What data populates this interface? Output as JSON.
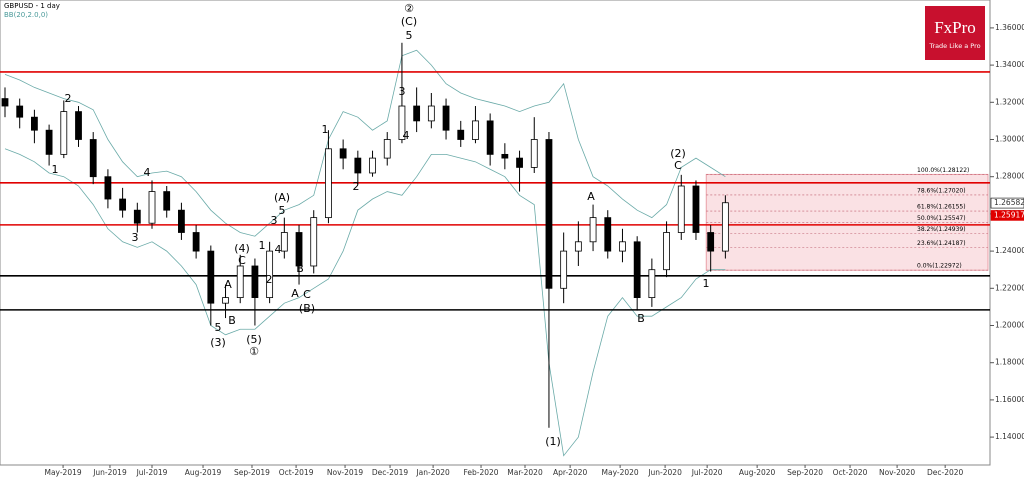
{
  "header": {
    "symbol": "GBPUSD - 1 day",
    "indicator": "BB(20,2.0,0)"
  },
  "logo": {
    "name": "FxPro",
    "tagline": "Trade Like a Pro"
  },
  "chart_data": {
    "type": "candlestick",
    "open": [
      1.322,
      1.318,
      1.312,
      1.305,
      1.292,
      1.315,
      1.3,
      1.28,
      1.268,
      1.262,
      1.255,
      1.272,
      1.262,
      1.25,
      1.24,
      1.212,
      1.215,
      1.232,
      1.215,
      1.24,
      1.25,
      1.232,
      1.258,
      1.295,
      1.29,
      1.282,
      1.29,
      1.3,
      1.318,
      1.31,
      1.318,
      1.305,
      1.3,
      1.31,
      1.292,
      1.29,
      1.285,
      1.3,
      1.22,
      1.24,
      1.245,
      1.258,
      1.24,
      1.245,
      1.215,
      1.23,
      1.25,
      1.275,
      1.25,
      1.24
    ],
    "high": [
      1.328,
      1.322,
      1.316,
      1.308,
      1.321,
      1.318,
      1.304,
      1.284,
      1.274,
      1.266,
      1.278,
      1.275,
      1.266,
      1.254,
      1.243,
      1.222,
      1.238,
      1.236,
      1.245,
      1.258,
      1.254,
      1.262,
      1.305,
      1.3,
      1.294,
      1.294,
      1.304,
      1.352,
      1.328,
      1.325,
      1.322,
      1.31,
      1.318,
      1.314,
      1.298,
      1.294,
      1.312,
      1.304,
      1.25,
      1.256,
      1.265,
      1.262,
      1.252,
      1.248,
      1.236,
      1.256,
      1.281,
      1.278,
      1.254,
      1.27
    ],
    "low": [
      1.312,
      1.306,
      1.298,
      1.286,
      1.29,
      1.296,
      1.276,
      1.263,
      1.258,
      1.25,
      1.252,
      1.258,
      1.246,
      1.236,
      1.2,
      1.204,
      1.212,
      1.2,
      1.212,
      1.236,
      1.222,
      1.228,
      1.255,
      1.284,
      1.276,
      1.28,
      1.286,
      1.298,
      1.304,
      1.306,
      1.3,
      1.296,
      1.298,
      1.286,
      1.284,
      1.272,
      1.282,
      1.145,
      1.212,
      1.232,
      1.24,
      1.236,
      1.234,
      1.208,
      1.21,
      1.226,
      1.246,
      1.246,
      1.229,
      1.236
    ],
    "close": [
      1.318,
      1.312,
      1.305,
      1.292,
      1.315,
      1.3,
      1.28,
      1.268,
      1.262,
      1.255,
      1.272,
      1.262,
      1.25,
      1.24,
      1.212,
      1.215,
      1.232,
      1.215,
      1.24,
      1.25,
      1.232,
      1.258,
      1.295,
      1.29,
      1.282,
      1.29,
      1.3,
      1.318,
      1.31,
      1.318,
      1.305,
      1.3,
      1.31,
      1.292,
      1.29,
      1.285,
      1.3,
      1.22,
      1.24,
      1.245,
      1.258,
      1.24,
      1.245,
      1.215,
      1.23,
      1.25,
      1.275,
      1.25,
      1.24,
      1.266
    ],
    "bollinger": {
      "upper": [
        1.335,
        1.332,
        1.328,
        1.325,
        1.322,
        1.32,
        1.316,
        1.3,
        1.288,
        1.28,
        1.282,
        1.283,
        1.28,
        1.272,
        1.262,
        1.255,
        1.25,
        1.248,
        1.255,
        1.262,
        1.265,
        1.27,
        1.3,
        1.315,
        1.312,
        1.305,
        1.31,
        1.345,
        1.348,
        1.34,
        1.33,
        1.325,
        1.322,
        1.32,
        1.318,
        1.315,
        1.318,
        1.32,
        1.33,
        1.3,
        1.28,
        1.275,
        1.268,
        1.262,
        1.258,
        1.265,
        1.285,
        1.29,
        1.285,
        1.28
      ],
      "lower": [
        1.295,
        1.292,
        1.288,
        1.282,
        1.28,
        1.275,
        1.265,
        1.252,
        1.245,
        1.242,
        1.245,
        1.24,
        1.232,
        1.222,
        1.2,
        1.195,
        1.198,
        1.198,
        1.205,
        1.212,
        1.215,
        1.22,
        1.225,
        1.24,
        1.262,
        1.268,
        1.272,
        1.27,
        1.28,
        1.292,
        1.292,
        1.29,
        1.288,
        1.284,
        1.28,
        1.27,
        1.265,
        1.18,
        1.13,
        1.14,
        1.175,
        1.205,
        1.215,
        1.205,
        1.205,
        1.21,
        1.215,
        1.225,
        1.23,
        1.23
      ]
    },
    "xlim": [
      -0.34,
      67
    ],
    "ylim": [
      1.125,
      1.375
    ],
    "yticks": [
      {
        "value": 1.36,
        "label": "1.36000"
      },
      {
        "value": 1.34,
        "label": "1.34000"
      },
      {
        "value": 1.32,
        "label": "1.32000"
      },
      {
        "value": 1.3,
        "label": "1.30000"
      },
      {
        "value": 1.28,
        "label": "1.28000"
      },
      {
        "value": 1.26,
        "label": "1.26000"
      },
      {
        "value": 1.24,
        "label": "1.24000"
      },
      {
        "value": 1.22,
        "label": "1.22000"
      },
      {
        "value": 1.2,
        "label": "1.20000"
      },
      {
        "value": 1.18,
        "label": "1.18000"
      },
      {
        "value": 1.16,
        "label": "1.16000"
      },
      {
        "value": 1.14,
        "label": "1.14000"
      }
    ],
    "xticks": [
      {
        "value": 3.95,
        "label": "May-2019"
      },
      {
        "value": 7.14,
        "label": "Jun-2019"
      },
      {
        "value": 10.0,
        "label": "Jul-2019"
      },
      {
        "value": 13.47,
        "label": "Aug-2019"
      },
      {
        "value": 16.8,
        "label": "Sep-2019"
      },
      {
        "value": 19.8,
        "label": "Oct-2019"
      },
      {
        "value": 23.13,
        "label": "Nov-2019"
      },
      {
        "value": 26.19,
        "label": "Dec-2019"
      },
      {
        "value": 29.12,
        "label": "Jan-2020"
      },
      {
        "value": 32.38,
        "label": "Feb-2020"
      },
      {
        "value": 35.37,
        "label": "Mar-2020"
      },
      {
        "value": 38.44,
        "label": "Apr-2020"
      },
      {
        "value": 41.84,
        "label": "May-2020"
      },
      {
        "value": 44.9,
        "label": "Jun-2020"
      },
      {
        "value": 47.76,
        "label": "Jul-2020"
      },
      {
        "value": 51.16,
        "label": "Aug-2020"
      },
      {
        "value": 54.42,
        "label": "Sep-2020"
      },
      {
        "value": 57.48,
        "label": "Oct-2020"
      },
      {
        "value": 60.68,
        "label": "Nov-2020"
      },
      {
        "value": 63.95,
        "label": "Dec-2020"
      }
    ],
    "levels": [
      {
        "value": 1.3363,
        "color": "#e00000"
      },
      {
        "value": 1.2767,
        "color": "#e00000"
      },
      {
        "value": 1.2541,
        "color": "#e00000"
      },
      {
        "value": 1.2267,
        "color": "#000000"
      },
      {
        "value": 1.2084,
        "color": "#000000"
      }
    ],
    "fib": [
      {
        "value": 1.28122,
        "label": "100.0%(1.28122)"
      },
      {
        "value": 1.2702,
        "label": "78.6%(1.27020)"
      },
      {
        "value": 1.26155,
        "label": "61.8%(1.26155)"
      },
      {
        "value": 1.25547,
        "label": "50.0%(1.25547)"
      },
      {
        "value": 1.24939,
        "label": "38.2%(1.24939)"
      },
      {
        "value": 1.24187,
        "label": "23.6%(1.24187)"
      },
      {
        "value": 1.22972,
        "label": "0.0%(1.22972)"
      }
    ],
    "price_tags": [
      {
        "value": 1.26582,
        "label": "1.26582"
      },
      {
        "value": 1.25917,
        "label": "1.25917"
      }
    ],
    "annotations": [
      "2",
      "1",
      "4",
      "3",
      "(4)",
      "C",
      "A",
      "B",
      "5",
      "(3)",
      "(5)",
      "①",
      "(A)",
      "5",
      "3",
      "1",
      "4",
      "2",
      "B",
      "A",
      "C",
      "(B)",
      "1",
      "2",
      "3",
      "4",
      "5",
      "(C)",
      "②",
      "A",
      "B",
      "(1)",
      "(2)",
      "C",
      "1"
    ]
  }
}
